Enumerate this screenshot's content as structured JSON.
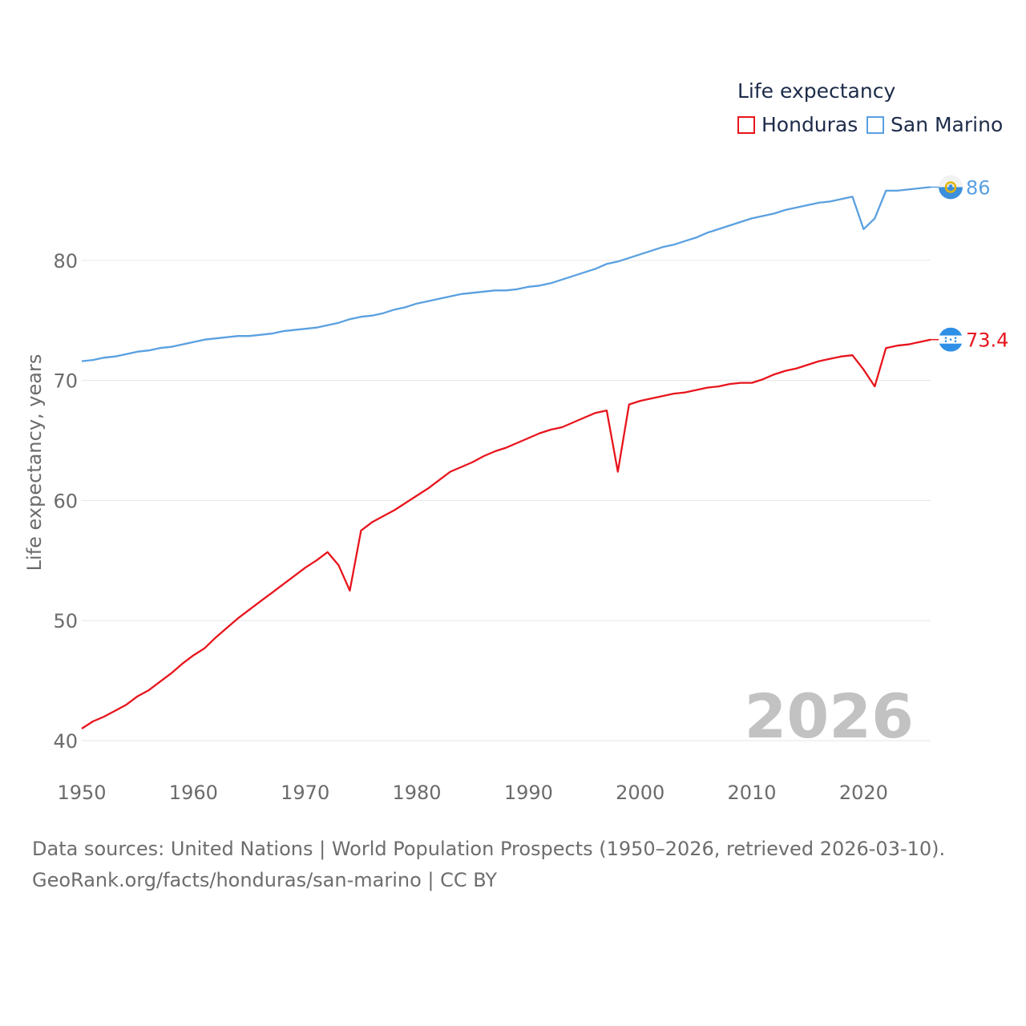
{
  "legend": {
    "title": "Life expectancy",
    "items": [
      {
        "label": "Honduras",
        "color": "#e8141c"
      },
      {
        "label": "San Marino",
        "color": "#5aa0e0"
      }
    ]
  },
  "source": {
    "line1": "Data sources: United Nations | World Population Prospects (1950–2026, retrieved 2026-03-10).",
    "line2": "GeoRank.org/facts/honduras/san-marino | CC BY"
  },
  "chart_data": {
    "type": "line",
    "ylabel": "Life expectancy, years",
    "xlabel": "",
    "year_label": "2026",
    "xlim": [
      1950,
      2026
    ],
    "ylim": [
      40,
      89
    ],
    "x_ticks": [
      1950,
      1960,
      1970,
      1980,
      1990,
      2000,
      2010,
      2020
    ],
    "y_ticks": [
      40,
      50,
      60,
      70,
      80
    ],
    "grid": true,
    "legend_position": "top-right",
    "series": [
      {
        "name": "Honduras",
        "color": "#e8141c",
        "end_label": "73.4",
        "flag": "honduras-flag-icon",
        "points": [
          [
            1950,
            41.0
          ],
          [
            1951,
            41.6
          ],
          [
            1952,
            42.0
          ],
          [
            1953,
            42.5
          ],
          [
            1954,
            43.0
          ],
          [
            1955,
            43.7
          ],
          [
            1956,
            44.2
          ],
          [
            1957,
            44.9
          ],
          [
            1958,
            45.6
          ],
          [
            1959,
            46.4
          ],
          [
            1960,
            47.1
          ],
          [
            1961,
            47.7
          ],
          [
            1962,
            48.6
          ],
          [
            1963,
            49.4
          ],
          [
            1964,
            50.2
          ],
          [
            1965,
            50.9
          ],
          [
            1966,
            51.6
          ],
          [
            1967,
            52.3
          ],
          [
            1968,
            53.0
          ],
          [
            1969,
            53.7
          ],
          [
            1970,
            54.4
          ],
          [
            1971,
            55.0
          ],
          [
            1972,
            55.7
          ],
          [
            1973,
            54.6
          ],
          [
            1974,
            52.5
          ],
          [
            1975,
            57.5
          ],
          [
            1976,
            58.2
          ],
          [
            1977,
            58.7
          ],
          [
            1978,
            59.2
          ],
          [
            1979,
            59.8
          ],
          [
            1980,
            60.4
          ],
          [
            1981,
            61.0
          ],
          [
            1982,
            61.7
          ],
          [
            1983,
            62.4
          ],
          [
            1984,
            62.8
          ],
          [
            1985,
            63.2
          ],
          [
            1986,
            63.7
          ],
          [
            1987,
            64.1
          ],
          [
            1988,
            64.4
          ],
          [
            1989,
            64.8
          ],
          [
            1990,
            65.2
          ],
          [
            1991,
            65.6
          ],
          [
            1992,
            65.9
          ],
          [
            1993,
            66.1
          ],
          [
            1994,
            66.5
          ],
          [
            1995,
            66.9
          ],
          [
            1996,
            67.3
          ],
          [
            1997,
            67.5
          ],
          [
            1998,
            62.4
          ],
          [
            1999,
            68.0
          ],
          [
            2000,
            68.3
          ],
          [
            2001,
            68.5
          ],
          [
            2002,
            68.7
          ],
          [
            2003,
            68.9
          ],
          [
            2004,
            69.0
          ],
          [
            2005,
            69.2
          ],
          [
            2006,
            69.4
          ],
          [
            2007,
            69.5
          ],
          [
            2008,
            69.7
          ],
          [
            2009,
            69.8
          ],
          [
            2010,
            69.8
          ],
          [
            2011,
            70.1
          ],
          [
            2012,
            70.5
          ],
          [
            2013,
            70.8
          ],
          [
            2014,
            71.0
          ],
          [
            2015,
            71.3
          ],
          [
            2016,
            71.6
          ],
          [
            2017,
            71.8
          ],
          [
            2018,
            72.0
          ],
          [
            2019,
            72.1
          ],
          [
            2020,
            70.9
          ],
          [
            2021,
            69.5
          ],
          [
            2022,
            72.7
          ],
          [
            2023,
            72.9
          ],
          [
            2024,
            73.0
          ],
          [
            2025,
            73.2
          ],
          [
            2026,
            73.4
          ]
        ]
      },
      {
        "name": "San Marino",
        "color": "#5aa0e0",
        "end_label": "86",
        "flag": "san-marino-flag-icon",
        "points": [
          [
            1950,
            71.6
          ],
          [
            1951,
            71.7
          ],
          [
            1952,
            71.9
          ],
          [
            1953,
            72.0
          ],
          [
            1954,
            72.2
          ],
          [
            1955,
            72.4
          ],
          [
            1956,
            72.5
          ],
          [
            1957,
            72.7
          ],
          [
            1958,
            72.8
          ],
          [
            1959,
            73.0
          ],
          [
            1960,
            73.2
          ],
          [
            1961,
            73.4
          ],
          [
            1962,
            73.5
          ],
          [
            1963,
            73.6
          ],
          [
            1964,
            73.7
          ],
          [
            1965,
            73.7
          ],
          [
            1966,
            73.8
          ],
          [
            1967,
            73.9
          ],
          [
            1968,
            74.1
          ],
          [
            1969,
            74.2
          ],
          [
            1970,
            74.3
          ],
          [
            1971,
            74.4
          ],
          [
            1972,
            74.6
          ],
          [
            1973,
            74.8
          ],
          [
            1974,
            75.1
          ],
          [
            1975,
            75.3
          ],
          [
            1976,
            75.4
          ],
          [
            1977,
            75.6
          ],
          [
            1978,
            75.9
          ],
          [
            1979,
            76.1
          ],
          [
            1980,
            76.4
          ],
          [
            1981,
            76.6
          ],
          [
            1982,
            76.8
          ],
          [
            1983,
            77.0
          ],
          [
            1984,
            77.2
          ],
          [
            1985,
            77.3
          ],
          [
            1986,
            77.4
          ],
          [
            1987,
            77.5
          ],
          [
            1988,
            77.5
          ],
          [
            1989,
            77.6
          ],
          [
            1990,
            77.8
          ],
          [
            1991,
            77.9
          ],
          [
            1992,
            78.1
          ],
          [
            1993,
            78.4
          ],
          [
            1994,
            78.7
          ],
          [
            1995,
            79.0
          ],
          [
            1996,
            79.3
          ],
          [
            1997,
            79.7
          ],
          [
            1998,
            79.9
          ],
          [
            1999,
            80.2
          ],
          [
            2000,
            80.5
          ],
          [
            2001,
            80.8
          ],
          [
            2002,
            81.1
          ],
          [
            2003,
            81.3
          ],
          [
            2004,
            81.6
          ],
          [
            2005,
            81.9
          ],
          [
            2006,
            82.3
          ],
          [
            2007,
            82.6
          ],
          [
            2008,
            82.9
          ],
          [
            2009,
            83.2
          ],
          [
            2010,
            83.5
          ],
          [
            2011,
            83.7
          ],
          [
            2012,
            83.9
          ],
          [
            2013,
            84.2
          ],
          [
            2014,
            84.4
          ],
          [
            2015,
            84.6
          ],
          [
            2016,
            84.8
          ],
          [
            2017,
            84.9
          ],
          [
            2018,
            85.1
          ],
          [
            2019,
            85.3
          ],
          [
            2020,
            82.6
          ],
          [
            2021,
            83.5
          ],
          [
            2022,
            85.8
          ],
          [
            2023,
            85.8
          ],
          [
            2024,
            85.9
          ],
          [
            2025,
            86.0
          ],
          [
            2026,
            86.1
          ]
        ]
      }
    ]
  }
}
